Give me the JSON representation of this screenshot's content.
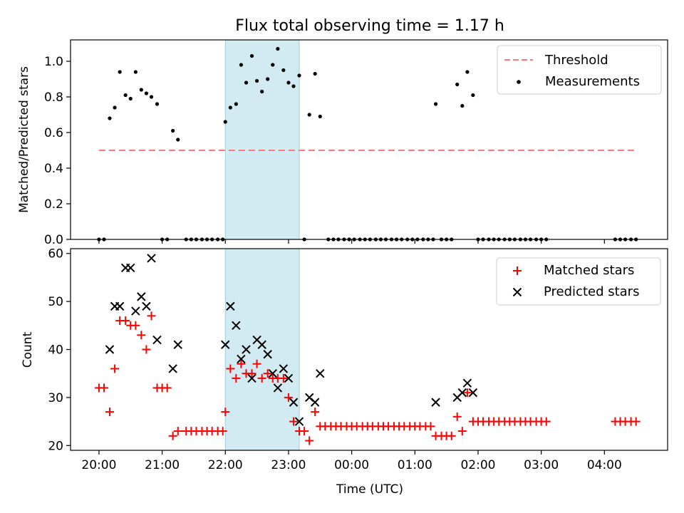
{
  "title": "Flux total observing time = 1.17 h",
  "xlabel": "Time (UTC)",
  "xticks": [
    {
      "t": 20,
      "label": "20:00"
    },
    {
      "t": 21,
      "label": "21:00"
    },
    {
      "t": 22,
      "label": "22:00"
    },
    {
      "t": 23,
      "label": "23:00"
    },
    {
      "t": 24,
      "label": "00:00"
    },
    {
      "t": 25,
      "label": "01:00"
    },
    {
      "t": 26,
      "label": "02:00"
    },
    {
      "t": 27,
      "label": "03:00"
    },
    {
      "t": 28,
      "label": "04:00"
    }
  ],
  "colors": {
    "threshold": "#ff7777",
    "span": "#add8e6",
    "matched": "#ff0000",
    "predicted": "#000000",
    "measurement": "#000000"
  },
  "chart_data": [
    {
      "type": "scatter",
      "ylabel": "Matched/Predicted stars",
      "ylim": [
        0,
        1.12
      ],
      "yticks": [
        0.0,
        0.2,
        0.4,
        0.6,
        0.8,
        1.0
      ],
      "ytick_labels": [
        "0.0",
        "0.2",
        "0.4",
        "0.6",
        "0.8",
        "1.0"
      ],
      "legend_position": "top-right",
      "highlight_span": [
        22.0,
        23.17
      ],
      "threshold": {
        "name": "Threshold",
        "value": 0.5,
        "x": [
          20.0,
          28.5
        ]
      },
      "series": [
        {
          "name": "Measurements",
          "x": [
            20.0,
            20.08,
            20.17,
            20.25,
            20.33,
            20.42,
            20.5,
            20.58,
            20.67,
            20.75,
            20.83,
            20.92,
            21.0,
            21.08,
            21.17,
            21.25,
            21.38,
            21.46,
            21.54,
            21.63,
            21.71,
            21.79,
            21.88,
            21.96,
            22.0,
            22.08,
            22.17,
            22.25,
            22.33,
            22.42,
            22.5,
            22.58,
            22.67,
            22.75,
            22.83,
            22.92,
            23.0,
            23.08,
            23.17,
            23.25,
            23.33,
            23.42,
            23.5,
            23.63,
            23.71,
            23.79,
            23.88,
            23.96,
            24.04,
            24.13,
            24.21,
            24.29,
            24.38,
            24.46,
            24.54,
            24.63,
            24.71,
            24.79,
            24.88,
            24.96,
            25.04,
            25.13,
            25.21,
            25.29,
            25.33,
            25.42,
            25.5,
            25.58,
            25.67,
            25.75,
            25.83,
            25.92,
            26.0,
            26.08,
            26.17,
            26.25,
            26.33,
            26.42,
            26.5,
            26.58,
            26.67,
            26.75,
            26.83,
            26.92,
            27.0,
            27.08,
            28.17,
            28.25,
            28.33,
            28.42,
            28.5
          ],
          "y": [
            0.0,
            0.0,
            0.68,
            0.74,
            0.94,
            0.81,
            0.79,
            0.94,
            0.84,
            0.82,
            0.8,
            0.76,
            0.0,
            0.0,
            0.61,
            0.56,
            0.0,
            0.0,
            0.0,
            0.0,
            0.0,
            0.0,
            0.0,
            0.0,
            0.66,
            0.74,
            0.76,
            0.98,
            0.88,
            1.03,
            0.89,
            0.83,
            0.9,
            0.98,
            1.07,
            0.95,
            0.88,
            0.86,
            0.92,
            0.0,
            0.7,
            0.93,
            0.69,
            0.0,
            0.0,
            0.0,
            0.0,
            0.0,
            0.0,
            0.0,
            0.0,
            0.0,
            0.0,
            0.0,
            0.0,
            0.0,
            0.0,
            0.0,
            0.0,
            0.0,
            0.0,
            0.0,
            0.0,
            0.0,
            0.76,
            0.0,
            0.0,
            0.0,
            0.87,
            0.75,
            0.94,
            0.81,
            0.0,
            0.0,
            0.0,
            0.0,
            0.0,
            0.0,
            0.0,
            0.0,
            0.0,
            0.0,
            0.0,
            0.0,
            0.0,
            0.0,
            0.0,
            0.0,
            0.0,
            0.0,
            0.0
          ]
        }
      ]
    },
    {
      "type": "scatter",
      "ylabel": "Count",
      "ylim": [
        19,
        61
      ],
      "yticks": [
        20,
        30,
        40,
        50,
        60
      ],
      "ytick_labels": [
        "20",
        "30",
        "40",
        "50",
        "60"
      ],
      "legend_position": "top-right",
      "highlight_span": [
        22.0,
        23.17
      ],
      "series": [
        {
          "name": "Matched stars",
          "marker": "plus",
          "x": [
            20.0,
            20.08,
            20.17,
            20.25,
            20.33,
            20.42,
            20.5,
            20.58,
            20.67,
            20.75,
            20.83,
            20.92,
            21.0,
            21.08,
            21.17,
            21.25,
            21.38,
            21.46,
            21.54,
            21.63,
            21.71,
            21.79,
            21.88,
            21.96,
            22.0,
            22.08,
            22.17,
            22.25,
            22.33,
            22.42,
            22.5,
            22.58,
            22.67,
            22.75,
            22.83,
            22.92,
            23.0,
            23.08,
            23.17,
            23.25,
            23.33,
            23.42,
            23.5,
            23.58,
            23.67,
            23.75,
            23.83,
            23.92,
            24.0,
            24.08,
            24.17,
            24.25,
            24.33,
            24.42,
            24.5,
            24.58,
            24.67,
            24.75,
            24.83,
            24.92,
            25.0,
            25.08,
            25.17,
            25.25,
            25.33,
            25.42,
            25.5,
            25.58,
            25.67,
            25.75,
            25.83,
            25.92,
            26.0,
            26.08,
            26.17,
            26.25,
            26.33,
            26.42,
            26.5,
            26.58,
            26.67,
            26.75,
            26.83,
            26.92,
            27.0,
            27.08,
            28.17,
            28.25,
            28.33,
            28.42,
            28.5
          ],
          "y": [
            32,
            32,
            27,
            36,
            46,
            46,
            45,
            45,
            43,
            40,
            47,
            32,
            32,
            32,
            22,
            23,
            23,
            23,
            23,
            23,
            23,
            23,
            23,
            23,
            27,
            36,
            34,
            37,
            35,
            35,
            37,
            34,
            35,
            34,
            34,
            34,
            30,
            25,
            23,
            23,
            21,
            27,
            24,
            24,
            24,
            24,
            24,
            24,
            24,
            24,
            24,
            24,
            24,
            24,
            24,
            24,
            24,
            24,
            24,
            24,
            24,
            24,
            24,
            24,
            22,
            22,
            22,
            22,
            26,
            23,
            31,
            25,
            25,
            25,
            25,
            25,
            25,
            25,
            25,
            25,
            25,
            25,
            25,
            25,
            25,
            25,
            25,
            25,
            25,
            25,
            25
          ]
        },
        {
          "name": "Predicted stars",
          "marker": "x",
          "x": [
            20.17,
            20.25,
            20.33,
            20.42,
            20.5,
            20.58,
            20.67,
            20.75,
            20.83,
            20.92,
            21.17,
            21.25,
            22.0,
            22.08,
            22.17,
            22.25,
            22.33,
            22.42,
            22.5,
            22.58,
            22.67,
            22.75,
            22.83,
            22.92,
            23.0,
            23.08,
            23.17,
            23.33,
            23.42,
            23.5,
            25.33,
            25.67,
            25.75,
            25.83,
            25.92
          ],
          "y": [
            40,
            49,
            49,
            57,
            57,
            48,
            51,
            49,
            59,
            42,
            36,
            41,
            41,
            49,
            45,
            38,
            40,
            34,
            42,
            41,
            39,
            35,
            32,
            36,
            34,
            29,
            25,
            30,
            29,
            35,
            29,
            30,
            31,
            33,
            31
          ]
        }
      ]
    }
  ]
}
